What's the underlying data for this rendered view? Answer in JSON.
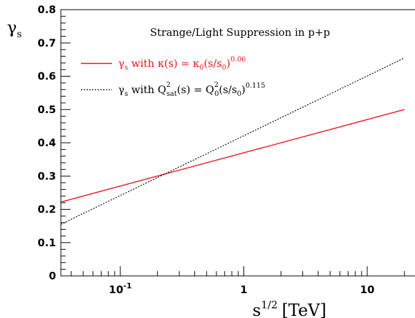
{
  "chart_data": {
    "type": "line",
    "title": "Strange/Light Suppression in p+p",
    "xlabel": {
      "base": "s",
      "sup": "1/2",
      "unit": "[TeV]"
    },
    "ylabel": {
      "base": "γ",
      "sub": "s"
    },
    "x_scale": "log",
    "xlim": [
      0.033,
      25
    ],
    "ylim": [
      0,
      0.8
    ],
    "y_ticks": [
      "0",
      "0.1",
      "0.2",
      "0.3",
      "0.4",
      "0.5",
      "0.6",
      "0.7",
      "0.8"
    ],
    "x_ticks": [
      {
        "value": 0.1,
        "base": "10",
        "exp": "-1"
      },
      {
        "value": 1,
        "base": "1",
        "exp": ""
      },
      {
        "value": 10,
        "base": "10",
        "exp": ""
      }
    ],
    "legend_position": "top-left",
    "series": [
      {
        "color": "#e8141c",
        "dash": "solid",
        "x": [
          0.033,
          20
        ],
        "y": [
          0.222,
          0.5
        ],
        "legend": {
          "g": "γ",
          "gsub": "s",
          "a": " with κ(s) = κ",
          "asub": "0",
          "b": "(s/s",
          "bsub": "0",
          "c": ")",
          "csup": "0.06"
        }
      },
      {
        "color": "#000000",
        "dash": "dotted",
        "x": [
          0.033,
          20
        ],
        "y": [
          0.155,
          0.655
        ],
        "legend": {
          "g": "γ",
          "gsub": "s",
          "a": " with Q",
          "asup": "2",
          "asub": "sat",
          "b": "(s) = Q",
          "bsup": "2",
          "bsub": "0",
          "c": "(s/s",
          "csub": "0",
          "d": ")",
          "dsup": "0.115"
        }
      }
    ]
  }
}
